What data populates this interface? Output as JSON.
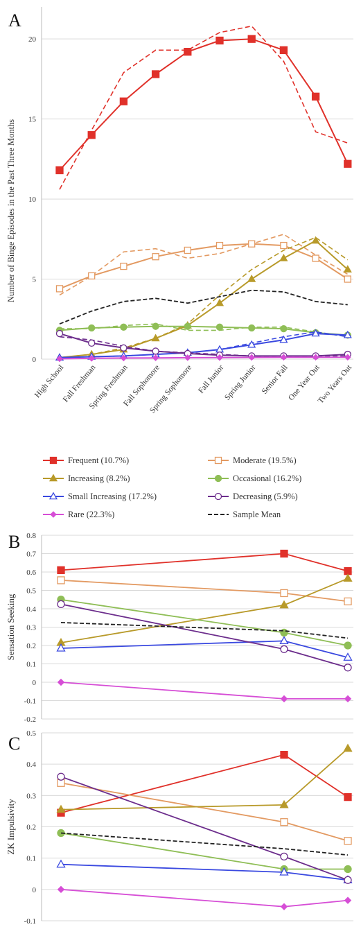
{
  "series_styles": [
    {
      "name": "Frequent (10.7%)",
      "color": "#e0312a",
      "marker": "filled-square"
    },
    {
      "name": "Moderate (19.5%)",
      "color": "#e39a62",
      "marker": "open-square"
    },
    {
      "name": "Increasing (8.2%)",
      "color": "#b89a2a",
      "marker": "filled-triangle"
    },
    {
      "name": "Occasional (16.2%)",
      "color": "#8fbe56",
      "marker": "filled-circle"
    },
    {
      "name": "Small Increasing (17.2%)",
      "color": "#3a49e0",
      "marker": "open-triangle"
    },
    {
      "name": "Decreasing (5.9%)",
      "color": "#6c2d8c",
      "marker": "open-circle"
    },
    {
      "name": "Rare (22.3%)",
      "color": "#d64ed6",
      "marker": "filled-diamond"
    },
    {
      "name": "Sample Mean",
      "color": "#222222",
      "marker": "dashed"
    }
  ],
  "chart_data": [
    {
      "panel": "A",
      "type": "line",
      "ylabel": "Number of Binge Episodes in the Past Three Months",
      "ylim": [
        0,
        22
      ],
      "yticks": [
        0,
        5,
        10,
        15,
        20
      ],
      "grid": true,
      "categories": [
        "High School",
        "Fall Freshman",
        "Spring Freshman",
        "Fall Sophomore",
        "Spring Sophomore",
        "Fall Junior",
        "Spring Junior",
        "Senior Fall",
        "One Year Out",
        "Two Years Out"
      ],
      "series": [
        {
          "name": "Frequent (10.7%)",
          "values": [
            11.8,
            14.0,
            16.1,
            17.8,
            19.2,
            19.9,
            20.0,
            19.3,
            16.4,
            12.2
          ],
          "estimated": [
            10.6,
            14.3,
            17.9,
            19.3,
            19.3,
            20.4,
            20.8,
            18.6,
            14.2,
            13.5
          ]
        },
        {
          "name": "Moderate (19.5%)",
          "values": [
            4.4,
            5.2,
            5.8,
            6.4,
            6.8,
            7.1,
            7.2,
            7.1,
            6.3,
            5.0
          ],
          "estimated": [
            4.0,
            5.2,
            6.7,
            6.9,
            6.3,
            6.6,
            7.2,
            7.8,
            6.5,
            5.3
          ]
        },
        {
          "name": "Increasing (8.2%)",
          "values": [
            0.1,
            0.3,
            0.6,
            1.3,
            2.1,
            3.5,
            5.0,
            6.3,
            7.4,
            5.6
          ],
          "estimated": [
            0.1,
            0.3,
            0.7,
            1.3,
            2.2,
            4.0,
            5.6,
            6.8,
            7.6,
            6.2
          ]
        },
        {
          "name": "Occasional (16.2%)",
          "values": [
            1.8,
            1.95,
            2.0,
            2.05,
            2.05,
            2.0,
            1.95,
            1.9,
            1.65,
            1.5
          ],
          "estimated": [
            1.9,
            1.9,
            2.1,
            2.2,
            1.8,
            1.8,
            2.0,
            2.0,
            1.7,
            1.4
          ]
        },
        {
          "name": "Small Increasing (17.2%)",
          "values": [
            0.1,
            0.15,
            0.2,
            0.3,
            0.4,
            0.6,
            0.9,
            1.2,
            1.6,
            1.5
          ],
          "estimated": [
            0.1,
            0.15,
            0.2,
            0.3,
            0.4,
            0.6,
            1.0,
            1.4,
            1.7,
            1.4
          ]
        },
        {
          "name": "Decreasing (5.9%)",
          "values": [
            1.6,
            1.0,
            0.7,
            0.5,
            0.35,
            0.25,
            0.2,
            0.2,
            0.2,
            0.3
          ],
          "estimated": [
            1.4,
            1.2,
            0.8,
            0.5,
            0.4,
            0.3,
            0.2,
            0.2,
            0.2,
            0.2
          ]
        },
        {
          "name": "Rare (22.3%)",
          "values": [
            0.02,
            0.05,
            0.07,
            0.08,
            0.09,
            0.1,
            0.11,
            0.12,
            0.12,
            0.12
          ]
        },
        {
          "name": "Sample Mean",
          "values": [
            2.2,
            3.0,
            3.6,
            3.8,
            3.5,
            3.9,
            4.3,
            4.2,
            3.6,
            3.4
          ]
        }
      ]
    },
    {
      "panel": "B",
      "type": "line",
      "ylabel": "Sensation Seeking",
      "ylim": [
        -0.2,
        0.8
      ],
      "yticks": [
        -0.2,
        -0.1,
        0,
        0.1,
        0.2,
        0.3,
        0.4,
        0.5,
        0.6,
        0.7,
        0.8
      ],
      "ytick_labels": [
        "-0.2",
        "-0.1",
        "0",
        "0.1",
        "0.2",
        "0.3",
        "0.4",
        "0.5",
        "0.6",
        "0.7",
        "0.8"
      ],
      "grid": true,
      "x_positions": [
        0,
        3.4,
        4.2
      ],
      "series": [
        {
          "name": "Frequent (10.7%)",
          "values": [
            0.61,
            0.7,
            0.605
          ]
        },
        {
          "name": "Moderate (19.5%)",
          "values": [
            0.555,
            0.485,
            0.44
          ]
        },
        {
          "name": "Increasing (8.2%)",
          "values": [
            0.215,
            0.42,
            0.565
          ]
        },
        {
          "name": "Occasional (16.2%)",
          "values": [
            0.45,
            0.27,
            0.2
          ]
        },
        {
          "name": "Small Increasing (17.2%)",
          "values": [
            0.185,
            0.225,
            0.135
          ]
        },
        {
          "name": "Decreasing (5.9%)",
          "values": [
            0.425,
            0.18,
            0.08
          ]
        },
        {
          "name": "Rare (22.3%)",
          "values": [
            0.0,
            -0.09,
            -0.09
          ]
        },
        {
          "name": "Sample Mean",
          "values": [
            0.325,
            0.28,
            0.24
          ]
        }
      ]
    },
    {
      "panel": "C",
      "type": "line",
      "ylabel": "ZK Impulsivity",
      "ylim": [
        -0.1,
        0.5
      ],
      "yticks": [
        -0.1,
        0,
        0.1,
        0.2,
        0.3,
        0.4,
        0.5
      ],
      "ytick_labels": [
        "-0.1",
        "0",
        "0.1",
        "0.2",
        "0.3",
        "0.4",
        "0.5"
      ],
      "grid": true,
      "x_positions": [
        0,
        3.4,
        4.2
      ],
      "series": [
        {
          "name": "Frequent (10.7%)",
          "values": [
            0.245,
            0.43,
            0.295
          ]
        },
        {
          "name": "Moderate (19.5%)",
          "values": [
            0.34,
            0.215,
            0.155
          ]
        },
        {
          "name": "Increasing (8.2%)",
          "values": [
            0.255,
            0.27,
            0.45
          ]
        },
        {
          "name": "Occasional (16.2%)",
          "values": [
            0.18,
            0.065,
            0.065
          ]
        },
        {
          "name": "Small Increasing (17.2%)",
          "values": [
            0.08,
            0.055,
            0.03
          ]
        },
        {
          "name": "Decreasing (5.9%)",
          "values": [
            0.36,
            0.105,
            0.03
          ]
        },
        {
          "name": "Rare (22.3%)",
          "values": [
            0.0,
            -0.055,
            -0.035
          ]
        },
        {
          "name": "Sample Mean",
          "values": [
            0.18,
            0.13,
            0.11
          ]
        }
      ]
    }
  ]
}
